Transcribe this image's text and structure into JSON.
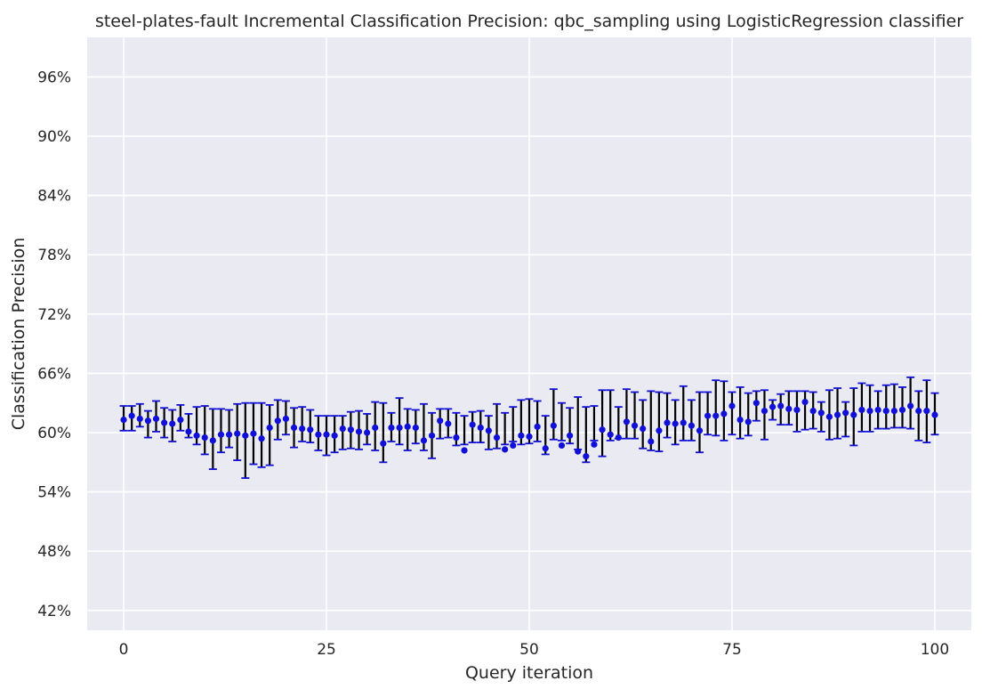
{
  "chart_data": {
    "type": "scatter",
    "title": "steel-plates-fault Incremental Classification Precision: qbc_sampling using LogisticRegression classifier",
    "xlabel": "Query iteration",
    "ylabel": "Classification Precision",
    "xlim": [
      -4.5,
      104.5
    ],
    "ylim": [
      0.4,
      1.0
    ],
    "x_ticks": [
      0,
      25,
      50,
      75,
      100
    ],
    "x_tick_labels": [
      "0",
      "25",
      "50",
      "75",
      "100"
    ],
    "y_ticks": [
      0.42,
      0.48,
      0.54,
      0.6,
      0.66,
      0.72,
      0.78,
      0.84,
      0.9,
      0.96
    ],
    "y_tick_labels": [
      "42%",
      "48%",
      "54%",
      "60%",
      "66%",
      "72%",
      "78%",
      "84%",
      "90%",
      "96%"
    ],
    "grid": true,
    "background_color": "#eaeaf2",
    "grid_color": "#ffffff",
    "marker_color": "#1010d8",
    "errorbar_color": "#000000",
    "cap_color": "#1010d8",
    "x": [
      0,
      1,
      2,
      3,
      4,
      5,
      6,
      7,
      8,
      9,
      10,
      11,
      12,
      13,
      14,
      15,
      16,
      17,
      18,
      19,
      20,
      21,
      22,
      23,
      24,
      25,
      26,
      27,
      28,
      29,
      30,
      31,
      32,
      33,
      34,
      35,
      36,
      37,
      38,
      39,
      40,
      41,
      42,
      43,
      44,
      45,
      46,
      47,
      48,
      49,
      50,
      51,
      52,
      53,
      54,
      55,
      56,
      57,
      58,
      59,
      60,
      61,
      62,
      63,
      64,
      65,
      66,
      67,
      68,
      69,
      70,
      71,
      72,
      73,
      74,
      75,
      76,
      77,
      78,
      79,
      80,
      81,
      82,
      83,
      84,
      85,
      86,
      87,
      88,
      89,
      90,
      91,
      92,
      93,
      94,
      95,
      96,
      97,
      98,
      99,
      100
    ],
    "y": [
      0.613,
      0.617,
      0.614,
      0.612,
      0.614,
      0.61,
      0.609,
      0.613,
      0.601,
      0.597,
      0.595,
      0.592,
      0.598,
      0.598,
      0.599,
      0.597,
      0.599,
      0.594,
      0.605,
      0.612,
      0.614,
      0.605,
      0.604,
      0.603,
      0.598,
      0.598,
      0.597,
      0.604,
      0.603,
      0.601,
      0.6,
      0.605,
      0.589,
      0.605,
      0.605,
      0.606,
      0.605,
      0.592,
      0.597,
      0.612,
      0.609,
      0.595,
      0.582,
      0.608,
      0.605,
      0.602,
      0.595,
      0.583,
      0.587,
      0.597,
      0.596,
      0.606,
      0.584,
      0.607,
      0.587,
      0.597,
      0.581,
      0.576,
      0.588,
      0.603,
      0.598,
      0.595,
      0.611,
      0.607,
      0.604,
      0.591,
      0.602,
      0.61,
      0.609,
      0.61,
      0.607,
      0.602,
      0.617,
      0.617,
      0.619,
      0.627,
      0.613,
      0.611,
      0.63,
      0.622,
      0.626,
      0.627,
      0.624,
      0.623,
      0.631,
      0.622,
      0.62,
      0.616,
      0.618,
      0.62,
      0.618,
      0.623,
      0.622,
      0.623,
      0.622,
      0.622,
      0.623,
      0.627,
      0.622,
      0.622,
      0.618
    ],
    "err_low": [
      0.602,
      0.602,
      0.606,
      0.595,
      0.601,
      0.595,
      0.591,
      0.602,
      0.595,
      0.588,
      0.578,
      0.563,
      0.58,
      0.585,
      0.572,
      0.554,
      0.568,
      0.565,
      0.567,
      0.593,
      0.598,
      0.585,
      0.591,
      0.59,
      0.582,
      0.577,
      0.58,
      0.583,
      0.584,
      0.583,
      0.588,
      0.582,
      0.57,
      0.591,
      0.588,
      0.582,
      0.589,
      0.582,
      0.574,
      0.594,
      0.595,
      0.587,
      0.588,
      0.59,
      0.59,
      0.583,
      0.584,
      0.588,
      0.591,
      0.588,
      0.589,
      0.591,
      0.578,
      0.593,
      0.592,
      0.589,
      0.583,
      0.57,
      0.592,
      0.576,
      0.592,
      0.594,
      0.594,
      0.594,
      0.584,
      0.582,
      0.581,
      0.595,
      0.588,
      0.592,
      0.592,
      0.58,
      0.598,
      0.597,
      0.592,
      0.598,
      0.594,
      0.597,
      0.612,
      0.593,
      0.613,
      0.608,
      0.608,
      0.601,
      0.603,
      0.604,
      0.601,
      0.593,
      0.594,
      0.596,
      0.587,
      0.601,
      0.601,
      0.604,
      0.604,
      0.605,
      0.605,
      0.604,
      0.592,
      0.59,
      0.598
    ],
    "err_high": [
      0.627,
      0.627,
      0.629,
      0.622,
      0.632,
      0.625,
      0.623,
      0.628,
      0.619,
      0.626,
      0.627,
      0.624,
      0.624,
      0.623,
      0.629,
      0.63,
      0.63,
      0.63,
      0.628,
      0.633,
      0.632,
      0.625,
      0.626,
      0.623,
      0.617,
      0.617,
      0.617,
      0.617,
      0.621,
      0.622,
      0.619,
      0.631,
      0.63,
      0.62,
      0.635,
      0.624,
      0.623,
      0.629,
      0.62,
      0.624,
      0.624,
      0.62,
      0.617,
      0.621,
      0.622,
      0.617,
      0.629,
      0.62,
      0.626,
      0.633,
      0.634,
      0.632,
      0.617,
      0.644,
      0.63,
      0.625,
      0.636,
      0.626,
      0.627,
      0.643,
      0.643,
      0.626,
      0.644,
      0.641,
      0.633,
      0.642,
      0.641,
      0.64,
      0.633,
      0.647,
      0.633,
      0.641,
      0.641,
      0.653,
      0.652,
      0.641,
      0.646,
      0.64,
      0.642,
      0.643,
      0.633,
      0.639,
      0.642,
      0.642,
      0.642,
      0.641,
      0.631,
      0.643,
      0.645,
      0.631,
      0.645,
      0.65,
      0.648,
      0.642,
      0.648,
      0.649,
      0.646,
      0.656,
      0.642,
      0.653,
      0.64
    ]
  }
}
